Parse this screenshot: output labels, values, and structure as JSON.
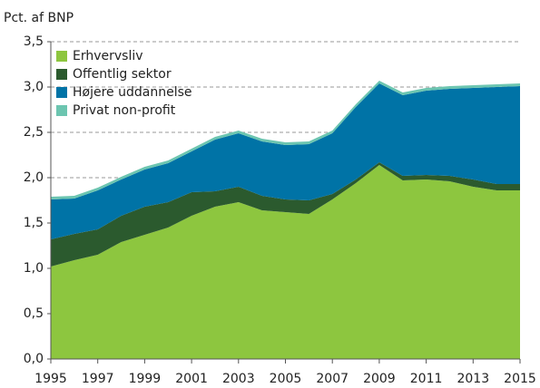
{
  "chart_data": {
    "type": "stacked_area",
    "y_label": "Pct. af BNP",
    "x": [
      1995,
      1996,
      1997,
      1998,
      1999,
      2000,
      2001,
      2002,
      2003,
      2004,
      2005,
      2006,
      2007,
      2008,
      2009,
      2010,
      2011,
      2012,
      2013,
      2014,
      2015
    ],
    "series": [
      {
        "name": "Erhvervsliv",
        "color": "#8dc63f",
        "values": [
          1.02,
          1.09,
          1.15,
          1.29,
          1.37,
          1.45,
          1.58,
          1.68,
          1.73,
          1.64,
          1.62,
          1.6,
          1.76,
          1.94,
          2.14,
          1.97,
          1.98,
          1.96,
          1.9,
          1.86,
          1.86
        ]
      },
      {
        "name": "Offentlig sektor",
        "color": "#2b5a2e",
        "values": [
          0.3,
          0.29,
          0.28,
          0.29,
          0.31,
          0.28,
          0.26,
          0.17,
          0.17,
          0.16,
          0.14,
          0.15,
          0.06,
          0.04,
          0.03,
          0.05,
          0.05,
          0.06,
          0.08,
          0.07,
          0.07
        ]
      },
      {
        "name": "Højere uddannelse",
        "color": "#0073a6",
        "values": [
          0.44,
          0.39,
          0.43,
          0.4,
          0.41,
          0.43,
          0.45,
          0.57,
          0.59,
          0.6,
          0.6,
          0.62,
          0.67,
          0.8,
          0.87,
          0.89,
          0.93,
          0.96,
          1.01,
          1.07,
          1.08
        ]
      },
      {
        "name": "Privat non-profit",
        "color": "#6cc5b0",
        "values": [
          0.03,
          0.03,
          0.03,
          0.03,
          0.03,
          0.03,
          0.03,
          0.03,
          0.03,
          0.03,
          0.03,
          0.03,
          0.03,
          0.03,
          0.03,
          0.03,
          0.03,
          0.03,
          0.03,
          0.03,
          0.03
        ]
      }
    ],
    "xlim": [
      1995,
      2015
    ],
    "xticks": [
      1995,
      1997,
      1999,
      2001,
      2003,
      2005,
      2007,
      2009,
      2011,
      2013,
      2015
    ],
    "ylim": [
      0,
      3.5
    ],
    "yticks": [
      {
        "value": 0,
        "label": "0,0"
      },
      {
        "value": 0.5,
        "label": "0,5"
      },
      {
        "value": 1,
        "label": "1,0"
      },
      {
        "value": 1.5,
        "label": "1,5"
      },
      {
        "value": 2,
        "label": "2,0"
      },
      {
        "value": 2.5,
        "label": "2,5"
      },
      {
        "value": 3,
        "label": "3,0"
      },
      {
        "value": 3.5,
        "label": "3,5"
      }
    ],
    "grid": true,
    "legend": "top-left"
  }
}
